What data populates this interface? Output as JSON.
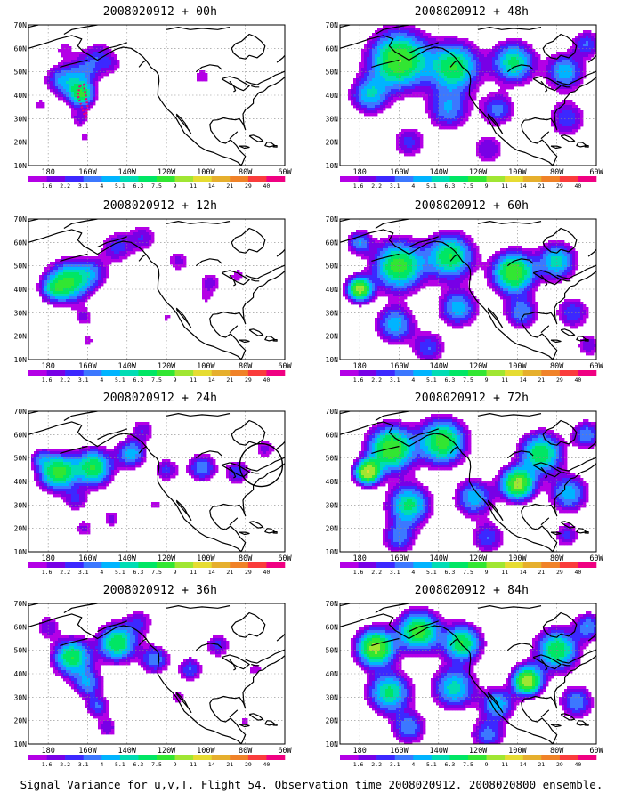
{
  "caption": "Signal Variance for u,v,T. Flight 54. Observation time 2008020912. 2008020800 ensemble.",
  "panel_titles": [
    "2008020912 + 00h",
    "2008020912 + 12h",
    "2008020912 + 24h",
    "2008020912 + 36h",
    "2008020912 + 48h",
    "2008020912 + 60h",
    "2008020912 + 72h",
    "2008020912 + 84h"
  ],
  "lat_labels": [
    "70N",
    "60N",
    "50N",
    "40N",
    "30N",
    "20N",
    "10N"
  ],
  "lon_labels": [
    "180",
    "160W",
    "140W",
    "120W",
    "100W",
    "80W",
    "60W"
  ],
  "colorbar_labels": [
    "1.6",
    "2.2",
    "3.1",
    "4",
    "5.1",
    "6.3",
    "7.5",
    "9",
    "11",
    "14",
    "21",
    "29",
    "40"
  ],
  "colorbar_colors": [
    "#b400e6",
    "#7800e6",
    "#3c28ff",
    "#3c78ff",
    "#00b4ff",
    "#00dcb4",
    "#00e664",
    "#32e632",
    "#a0e632",
    "#e6dc32",
    "#e6af2d",
    "#f08228",
    "#fa3c3c",
    "#f00082"
  ],
  "variance_colors": [
    "#ffffff",
    "#b400e6",
    "#7800e6",
    "#3c28ff",
    "#3c78ff",
    "#00b4ff",
    "#00dcb4",
    "#00e664",
    "#32e632",
    "#a0e632",
    "#e6dc32",
    "#e6af2d",
    "#f08228",
    "#fa3c3c",
    "#f00082"
  ],
  "coast_color": "#000000",
  "flight_track_color": "#e6007e"
}
